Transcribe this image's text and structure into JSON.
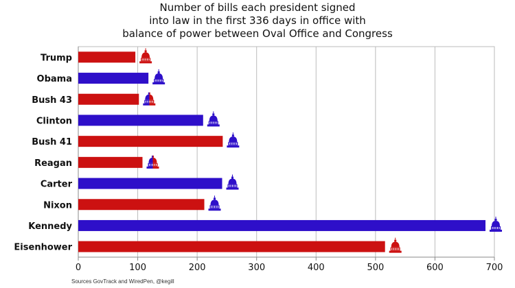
{
  "chart_data": {
    "type": "bar",
    "orientation": "horizontal",
    "title_lines": [
      "Number of bills each president signed",
      "into law in the first 336 days in office with",
      "balance of power between Oval Office and Congress"
    ],
    "categories": [
      "Trump",
      "Obama",
      "Bush 43",
      "Clinton",
      "Bush 41",
      "Reagan",
      "Carter",
      "Nixon",
      "Kennedy",
      "Eisenhower"
    ],
    "values": [
      96,
      118,
      102,
      210,
      243,
      108,
      242,
      212,
      685,
      516
    ],
    "bar_colors": [
      "#cc1111",
      "#2e0fc9",
      "#cc1111",
      "#2e0fc9",
      "#cc1111",
      "#cc1111",
      "#2e0fc9",
      "#cc1111",
      "#2e0fc9",
      "#cc1111"
    ],
    "icon_colors": [
      [
        "#cc1111",
        "#cc1111"
      ],
      [
        "#2e0fc9",
        "#2e0fc9"
      ],
      [
        "#2e0fc9",
        "#cc1111"
      ],
      [
        "#2e0fc9",
        "#2e0fc9"
      ],
      [
        "#2e0fc9",
        "#2e0fc9"
      ],
      [
        "#2e0fc9",
        "#cc1111"
      ],
      [
        "#2e0fc9",
        "#2e0fc9"
      ],
      [
        "#2e0fc9",
        "#2e0fc9"
      ],
      [
        "#2e0fc9",
        "#2e0fc9"
      ],
      [
        "#cc1111",
        "#cc1111"
      ]
    ],
    "icon": "capitol-dome-icon",
    "xlim": [
      0,
      700
    ],
    "xticks": [
      0,
      100,
      200,
      300,
      400,
      500,
      600,
      700
    ],
    "grid": "vertical",
    "xlabel": "",
    "ylabel": ""
  },
  "source": "Sources GovTrack and WiredPen, @kegill"
}
